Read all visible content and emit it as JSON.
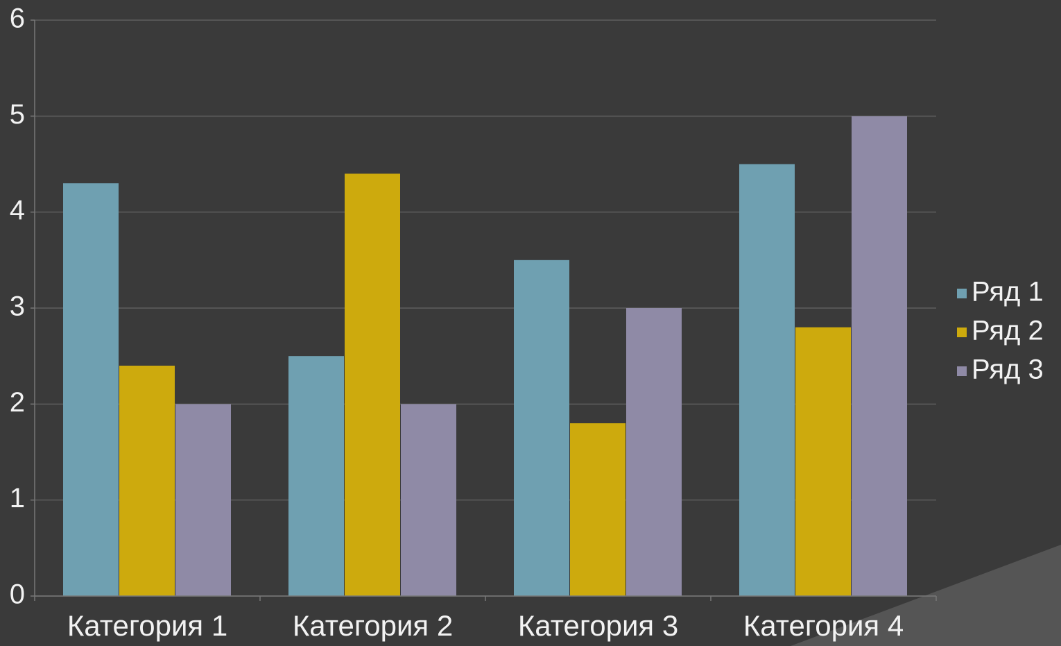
{
  "chart_data": {
    "type": "bar",
    "categories": [
      "Категория 1",
      "Категория 2",
      "Категория 3",
      "Категория 4"
    ],
    "series": [
      {
        "name": "Ряд 1",
        "color": "#6fa0b1",
        "values": [
          4.3,
          2.5,
          3.5,
          4.5
        ]
      },
      {
        "name": "Ряд 2",
        "color": "#cdaa0d",
        "values": [
          2.4,
          4.4,
          1.8,
          2.8
        ]
      },
      {
        "name": "Ряд 3",
        "color": "#8f8aa6",
        "values": [
          2,
          2,
          3,
          5
        ]
      }
    ],
    "ylim": [
      0,
      6
    ],
    "yticks": [
      0,
      1,
      2,
      3,
      4,
      5,
      6
    ],
    "grid": true,
    "legend": "right"
  }
}
